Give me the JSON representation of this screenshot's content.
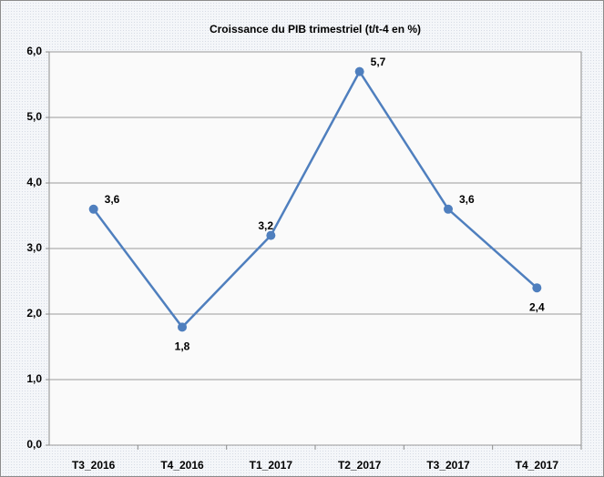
{
  "chart_data": {
    "type": "line",
    "title": "Croissance du PIB trimestriel (t/t-4 en %)",
    "categories": [
      "T3_2016",
      "T4_2016",
      "T1_2017",
      "T2_2017",
      "T3_2017",
      "T4_2017"
    ],
    "series": [
      {
        "name": "PIB",
        "color": "#4f7fbe",
        "values": [
          3.6,
          1.8,
          3.2,
          5.7,
          3.6,
          2.4
        ],
        "value_labels": [
          "3,6",
          "1,8",
          "3,2",
          "5,7",
          "3,6",
          "2,4"
        ]
      }
    ],
    "ylim": [
      0,
      6
    ],
    "yticks": [
      {
        "value": 0,
        "label": "0,0"
      },
      {
        "value": 1,
        "label": "1,0"
      },
      {
        "value": 2,
        "label": "2,0"
      },
      {
        "value": 3,
        "label": "3,0"
      },
      {
        "value": 4,
        "label": "4,0"
      },
      {
        "value": 5,
        "label": "5,0"
      },
      {
        "value": 6,
        "label": "6,0"
      }
    ],
    "grid": true
  }
}
